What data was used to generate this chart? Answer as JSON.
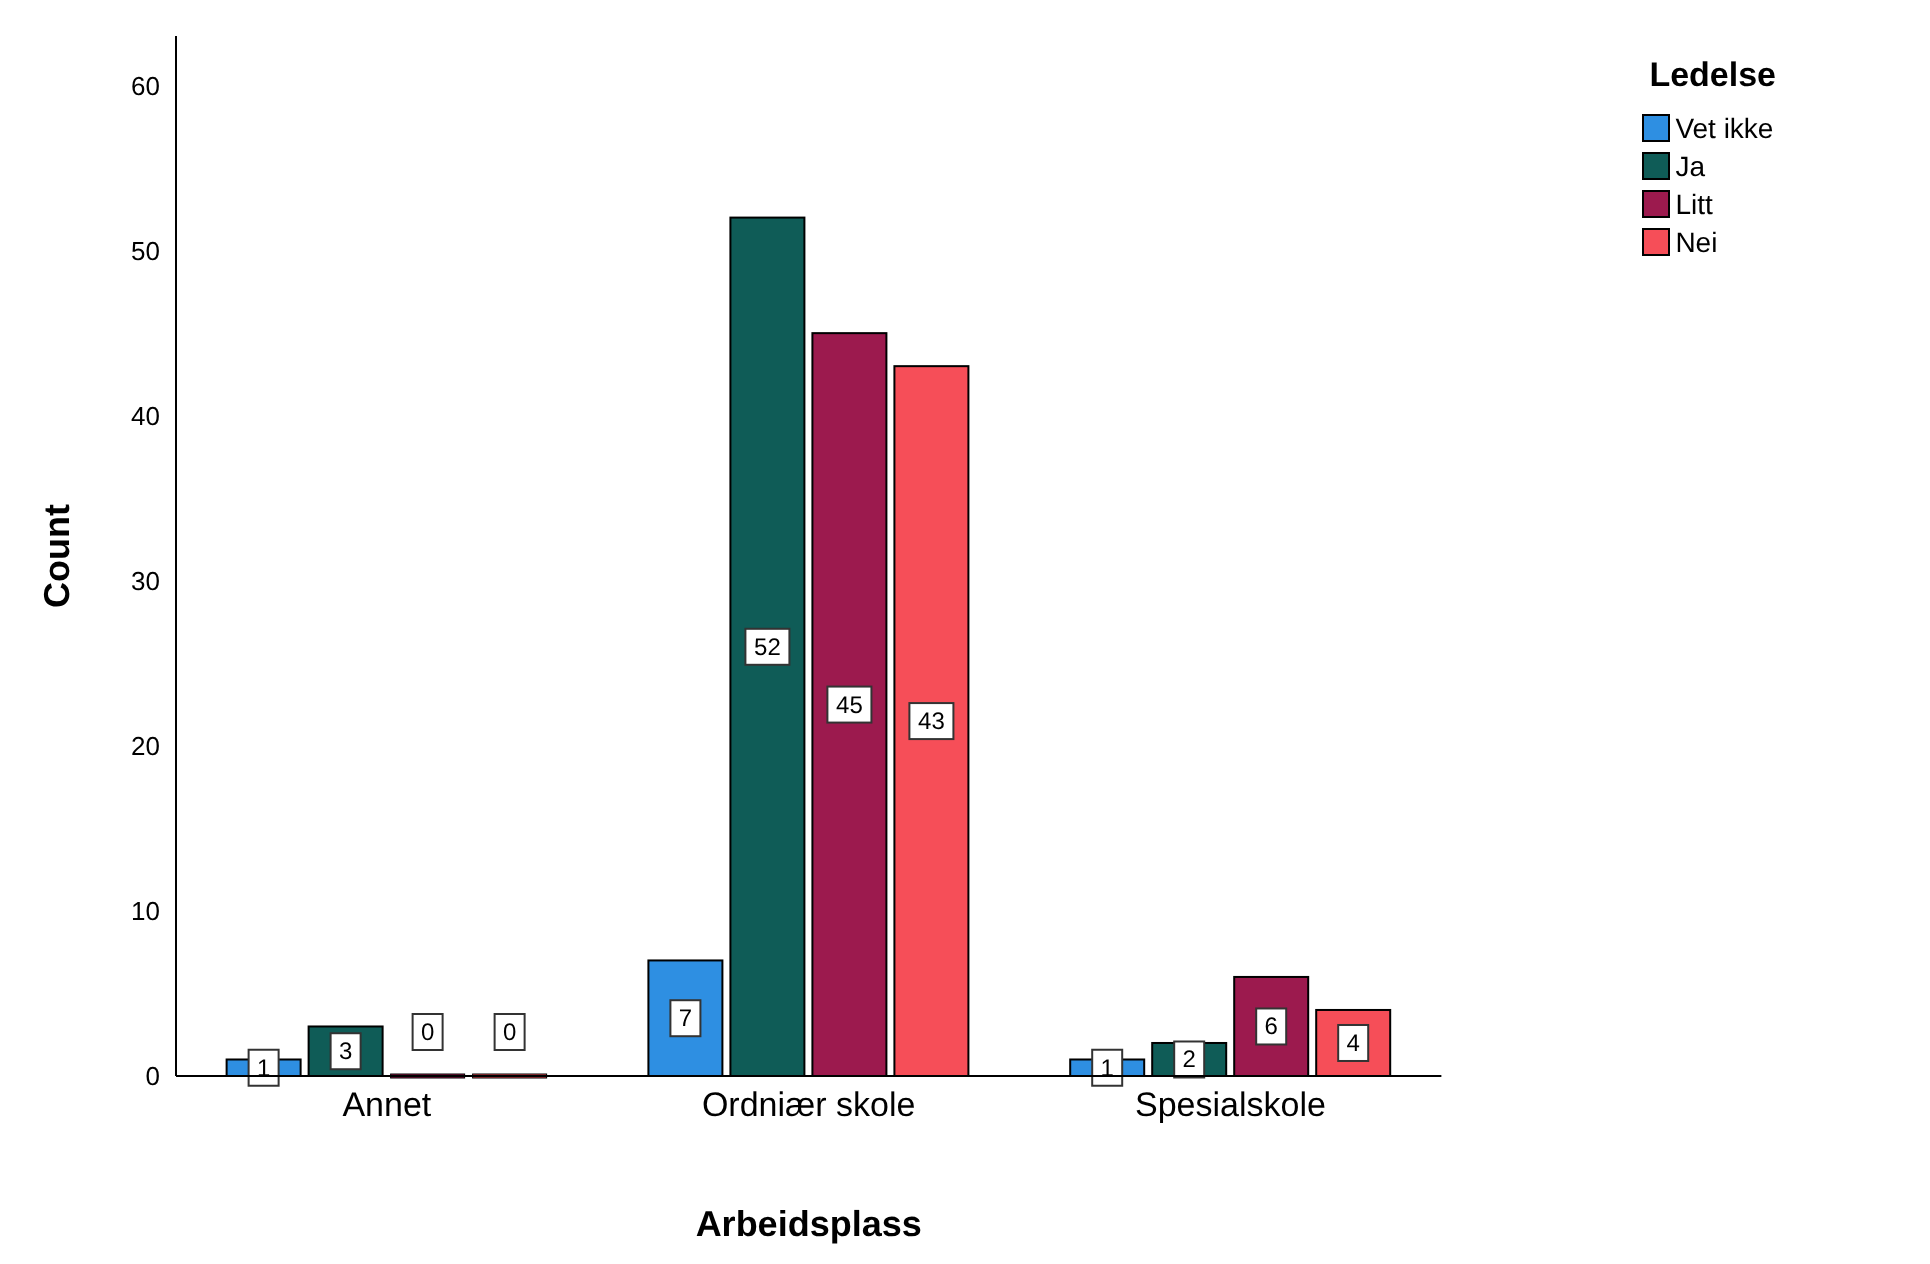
{
  "chart_data": {
    "type": "bar",
    "xlabel": "Arbeidsplass",
    "ylabel": "Count",
    "legend_title": "Ledelse",
    "categories": [
      "Annet",
      "Ordniær skole",
      "Spesialskole"
    ],
    "series": [
      {
        "name": "Vet ikke",
        "color": "#2e8fe2",
        "values": [
          1,
          7,
          1
        ]
      },
      {
        "name": "Ja",
        "color": "#0f5c57",
        "values": [
          3,
          52,
          2
        ]
      },
      {
        "name": "Litt",
        "color": "#9c1a4e",
        "values": [
          0,
          45,
          6
        ]
      },
      {
        "name": "Nei",
        "color": "#f64e58",
        "values": [
          0,
          43,
          4
        ]
      }
    ],
    "ylim": [
      0,
      63
    ],
    "yticks": [
      0,
      10,
      20,
      30,
      40,
      50,
      60
    ],
    "grid": false,
    "legend": "top right",
    "data_labels": true
  }
}
